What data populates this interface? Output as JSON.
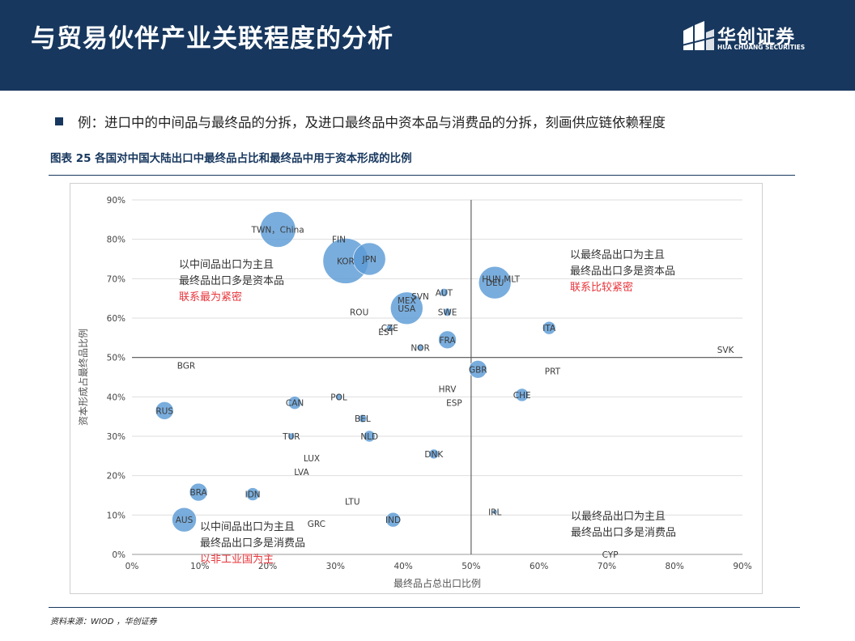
{
  "header": {
    "title": "与贸易伙伴产业关联程度的分析",
    "logo_cn": "华创证券",
    "logo_en": "HUA CHUANG SECURITIES"
  },
  "bullet": "例：进口中的中间品与最终品的分拆，及进口最终品中资本品与消费品的分拆，刻画供应链依赖程度",
  "figure_caption": "图表 25 各国对中国大陆出口中最终品占比和最终品中用于资本形成的比例",
  "source": "资料来源：WIOD ，华创证券",
  "colors": {
    "header_bg": "#17375e",
    "bubble_fill": "#5b9bd5",
    "highlight_text": "#e8353b"
  },
  "chart_data": {
    "type": "scatter",
    "title": "",
    "xlabel": "最终品占总出口比例",
    "ylabel": "资本形成占最终品比例",
    "xlim": [
      0,
      0.9
    ],
    "ylim": [
      0,
      0.9
    ],
    "x_ticks": [
      "0%",
      "10%",
      "20%",
      "30%",
      "40%",
      "50%",
      "60%",
      "70%",
      "80%",
      "90%"
    ],
    "y_ticks": [
      "0%",
      "10%",
      "20%",
      "30%",
      "40%",
      "50%",
      "60%",
      "70%",
      "80%",
      "90%"
    ],
    "grid": true,
    "divider_lines": {
      "x": 0.5,
      "y": 0.5
    },
    "points": [
      {
        "label": "TWN，China",
        "x": 0.215,
        "y": 0.825,
        "size": 22
      },
      {
        "label": "FIN",
        "x": 0.305,
        "y": 0.8,
        "size": 0
      },
      {
        "label": "KOR",
        "x": 0.315,
        "y": 0.745,
        "size": 28
      },
      {
        "label": "JPN",
        "x": 0.35,
        "y": 0.75,
        "size": 20
      },
      {
        "label": "HUN",
        "x": 0.53,
        "y": 0.7,
        "size": 0
      },
      {
        "label": "DEU",
        "x": 0.535,
        "y": 0.69,
        "size": 20
      },
      {
        "label": "MLT",
        "x": 0.56,
        "y": 0.7,
        "size": 0
      },
      {
        "label": "SVN",
        "x": 0.425,
        "y": 0.655,
        "size": 0
      },
      {
        "label": "AUT",
        "x": 0.46,
        "y": 0.665,
        "size": 5
      },
      {
        "label": "MEX",
        "x": 0.405,
        "y": 0.645,
        "size": 0
      },
      {
        "label": "USA",
        "x": 0.405,
        "y": 0.625,
        "size": 20
      },
      {
        "label": "ROU",
        "x": 0.335,
        "y": 0.615,
        "size": 0
      },
      {
        "label": "SWE",
        "x": 0.465,
        "y": 0.615,
        "size": 5
      },
      {
        "label": "CZE",
        "x": 0.38,
        "y": 0.575,
        "size": 4
      },
      {
        "label": "EST",
        "x": 0.375,
        "y": 0.565,
        "size": 0
      },
      {
        "label": "ITA",
        "x": 0.615,
        "y": 0.575,
        "size": 8
      },
      {
        "label": "FRA",
        "x": 0.465,
        "y": 0.545,
        "size": 11
      },
      {
        "label": "NOR",
        "x": 0.425,
        "y": 0.525,
        "size": 4
      },
      {
        "label": "SVK",
        "x": 0.875,
        "y": 0.52,
        "size": 0
      },
      {
        "label": "BGR",
        "x": 0.08,
        "y": 0.48,
        "size": 0
      },
      {
        "label": "GBR",
        "x": 0.51,
        "y": 0.47,
        "size": 11
      },
      {
        "label": "PRT",
        "x": 0.62,
        "y": 0.465,
        "size": 0
      },
      {
        "label": "HRV",
        "x": 0.465,
        "y": 0.42,
        "size": 0
      },
      {
        "label": "CHE",
        "x": 0.575,
        "y": 0.405,
        "size": 8
      },
      {
        "label": "POL",
        "x": 0.305,
        "y": 0.4,
        "size": 4
      },
      {
        "label": "CAN",
        "x": 0.24,
        "y": 0.385,
        "size": 8
      },
      {
        "label": "ESP",
        "x": 0.475,
        "y": 0.385,
        "size": 0
      },
      {
        "label": "RUS",
        "x": 0.048,
        "y": 0.365,
        "size": 11
      },
      {
        "label": "BEL",
        "x": 0.34,
        "y": 0.345,
        "size": 5
      },
      {
        "label": "NLD",
        "x": 0.35,
        "y": 0.3,
        "size": 7
      },
      {
        "label": "TUR",
        "x": 0.235,
        "y": 0.3,
        "size": 4
      },
      {
        "label": "DNK",
        "x": 0.445,
        "y": 0.255,
        "size": 6
      },
      {
        "label": "LUX",
        "x": 0.265,
        "y": 0.245,
        "size": 0
      },
      {
        "label": "LVA",
        "x": 0.25,
        "y": 0.21,
        "size": 0
      },
      {
        "label": "BRA",
        "x": 0.098,
        "y": 0.158,
        "size": 11
      },
      {
        "label": "IDN",
        "x": 0.178,
        "y": 0.153,
        "size": 8
      },
      {
        "label": "LTU",
        "x": 0.325,
        "y": 0.135,
        "size": 0
      },
      {
        "label": "IRL",
        "x": 0.535,
        "y": 0.108,
        "size": 3
      },
      {
        "label": "AUS",
        "x": 0.077,
        "y": 0.088,
        "size": 15
      },
      {
        "label": "IND",
        "x": 0.385,
        "y": 0.088,
        "size": 9
      },
      {
        "label": "GRC",
        "x": 0.272,
        "y": 0.078,
        "size": 0
      },
      {
        "label": "CYP",
        "x": 0.705,
        "y": 0.0,
        "size": 0
      }
    ],
    "annotations": [
      {
        "lines": [
          "以中间品出口为主且",
          "最终品出口多是资本品"
        ],
        "highlight": "联系最为紧密"
      },
      {
        "lines": [
          "以最终品出口为主且",
          "最终品出口多是资本品"
        ],
        "highlight": "联系比较紧密"
      },
      {
        "lines": [
          "以中间品出口为主且",
          "最终品出口多是消费品"
        ],
        "highlight": "以非工业国为主"
      },
      {
        "lines": [
          "以最终品出口为主且",
          "最终品出口多是消费品"
        ],
        "highlight": ""
      }
    ]
  }
}
